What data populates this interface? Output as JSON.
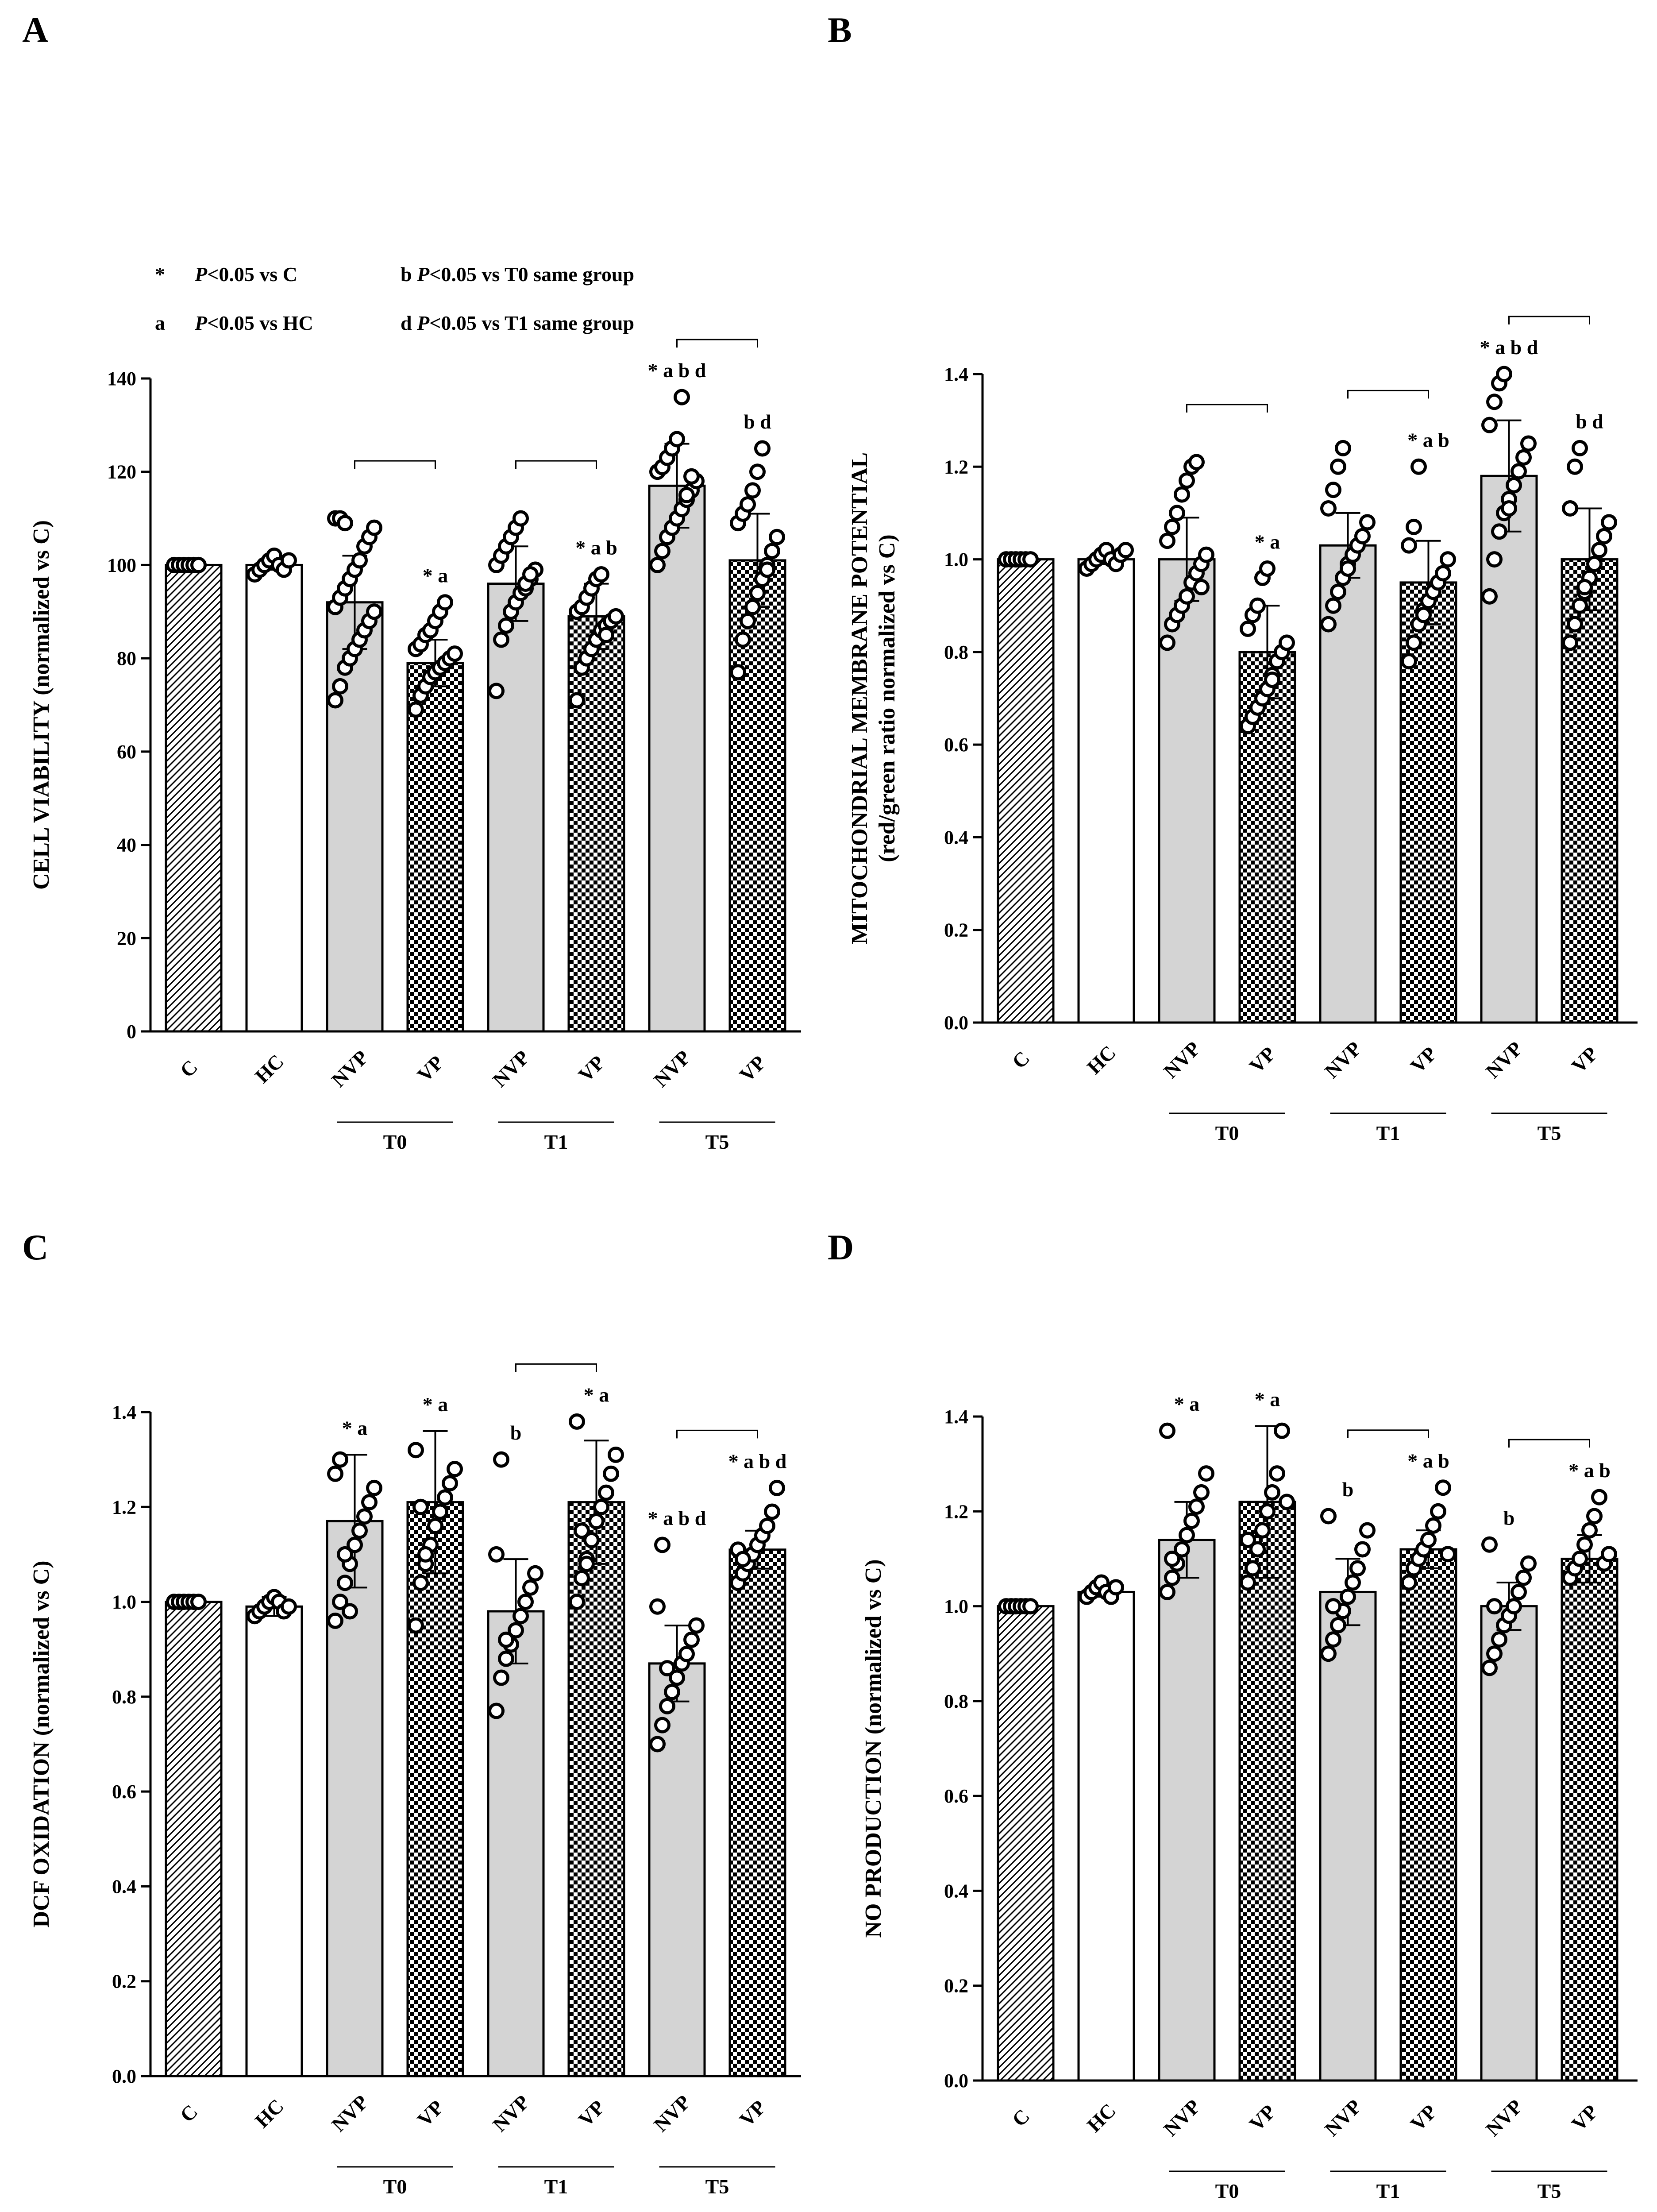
{
  "legend": {
    "lines": [
      {
        "symbol": "*",
        "italic": "P",
        "rest": "<0.05 vs C"
      },
      {
        "symbol": "a",
        "italic": "P",
        "rest": "<0.05 vs HC"
      },
      {
        "symbol": "b",
        "italic": "P",
        "rest": "<0.05 vs T0 same group"
      },
      {
        "symbol": "d",
        "italic": "P",
        "rest": "<0.05 vs T1 same group"
      }
    ]
  },
  "colors": {
    "bar_fill_gray": "#d4d4d4",
    "bar_fill_white": "#ffffff",
    "stroke": "#000000"
  },
  "chart_data": [
    {
      "panel": "A",
      "type": "bar",
      "ylabel_lines": [
        "CELL VIABILITY (normalized vs C)"
      ],
      "ylim": [
        0,
        140
      ],
      "yticks": [
        "0",
        "20",
        "40",
        "60",
        "80",
        "100",
        "120",
        "140"
      ],
      "categories": [
        "C",
        "HC",
        "NVP",
        "VP",
        "NVP",
        "VP",
        "NVP",
        "VP"
      ],
      "groups": [
        "T0",
        "T1",
        "T5"
      ],
      "patterns": [
        "hatch",
        "white",
        "gray",
        "check",
        "gray",
        "check",
        "gray",
        "check"
      ],
      "values": [
        100,
        100,
        92,
        79,
        96,
        89,
        117,
        101
      ],
      "sd": [
        0,
        1,
        10,
        5,
        8,
        7,
        9,
        10
      ],
      "points": [
        [
          100,
          100,
          100,
          100,
          100,
          100
        ],
        [
          98,
          99,
          100,
          101,
          102,
          100,
          99,
          101
        ],
        [
          71,
          74,
          78,
          80,
          82,
          84,
          86,
          88,
          90,
          91,
          93,
          95,
          97,
          99,
          101,
          104,
          106,
          108,
          110,
          110,
          109
        ],
        [
          69,
          72,
          74,
          76,
          77,
          78,
          79,
          80,
          81,
          82,
          83,
          85,
          86,
          88,
          90,
          92
        ],
        [
          73,
          84,
          87,
          90,
          92,
          94,
          95,
          97,
          99,
          100,
          102,
          104,
          106,
          108,
          110,
          96,
          98
        ],
        [
          71,
          78,
          80,
          82,
          84,
          86,
          87,
          88,
          89,
          90,
          91,
          93,
          95,
          97,
          98,
          85
        ],
        [
          100,
          103,
          106,
          108,
          110,
          112,
          114,
          116,
          118,
          120,
          121,
          123,
          125,
          127,
          136,
          115,
          119
        ],
        [
          77,
          84,
          88,
          91,
          94,
          97,
          100,
          103,
          106,
          109,
          111,
          113,
          116,
          120,
          125,
          99
        ]
      ],
      "annotations": [
        "",
        "",
        "",
        "* a",
        "",
        "* a b",
        "* a b d",
        "b d"
      ],
      "brackets": [
        [
          2,
          3
        ],
        [
          4,
          5
        ],
        [
          6,
          7
        ]
      ]
    },
    {
      "panel": "B",
      "type": "bar",
      "ylabel_lines": [
        "MITOCHONDRIAL MEMBRANE POTENTIAL",
        "(red/green ratio normalized vs C)"
      ],
      "ylim": [
        0,
        1.4
      ],
      "yticks": [
        "0.0",
        "0.2",
        "0.4",
        "0.6",
        "0.8",
        "1.0",
        "1.2",
        "1.4"
      ],
      "categories": [
        "C",
        "HC",
        "NVP",
        "VP",
        "NVP",
        "VP",
        "NVP",
        "VP"
      ],
      "groups": [
        "T0",
        "T1",
        "T5"
      ],
      "patterns": [
        "hatch",
        "white",
        "gray",
        "check",
        "gray",
        "check",
        "gray",
        "check"
      ],
      "values": [
        1.0,
        1.0,
        1.0,
        0.8,
        1.03,
        0.95,
        1.18,
        1.0
      ],
      "sd": [
        0,
        0.01,
        0.09,
        0.1,
        0.07,
        0.09,
        0.12,
        0.11
      ],
      "points": [
        [
          1.0,
          1.0,
          1.0,
          1.0,
          1.0,
          1.0
        ],
        [
          0.98,
          0.99,
          1.0,
          1.01,
          1.02,
          1.0,
          0.99,
          1.01,
          1.02
        ],
        [
          0.82,
          0.86,
          0.88,
          0.9,
          0.92,
          0.95,
          0.97,
          0.99,
          1.01,
          1.04,
          1.07,
          1.1,
          1.14,
          1.17,
          1.2,
          1.21,
          0.94
        ],
        [
          0.64,
          0.66,
          0.68,
          0.7,
          0.72,
          0.75,
          0.78,
          0.8,
          0.82,
          0.85,
          0.88,
          0.9,
          0.96,
          0.98,
          0.74
        ],
        [
          0.86,
          0.9,
          0.93,
          0.96,
          0.99,
          1.01,
          1.03,
          1.05,
          1.08,
          1.11,
          1.15,
          1.2,
          1.24,
          0.98
        ],
        [
          0.78,
          0.82,
          0.86,
          0.89,
          0.91,
          0.93,
          0.95,
          0.97,
          1.0,
          1.03,
          1.07,
          1.2,
          0.88
        ],
        [
          0.92,
          1.0,
          1.06,
          1.1,
          1.13,
          1.16,
          1.19,
          1.22,
          1.25,
          1.29,
          1.34,
          1.38,
          1.4,
          1.11
        ],
        [
          0.82,
          0.86,
          0.9,
          0.93,
          0.96,
          0.99,
          1.02,
          1.05,
          1.08,
          1.11,
          1.2,
          1.24,
          0.94
        ]
      ],
      "annotations": [
        "",
        "",
        "",
        "* a",
        "",
        "* a b",
        "* a b d",
        "b d"
      ],
      "brackets": [
        [
          2,
          3
        ],
        [
          4,
          5
        ],
        [
          6,
          7
        ]
      ]
    },
    {
      "panel": "C",
      "type": "bar",
      "ylabel_lines": [
        "DCF OXIDATION (normalized vs C)"
      ],
      "ylim": [
        0,
        1.4
      ],
      "yticks": [
        "0.0",
        "0.2",
        "0.4",
        "0.6",
        "0.8",
        "1.0",
        "1.2",
        "1.4"
      ],
      "categories": [
        "C",
        "HC",
        "NVP",
        "VP",
        "NVP",
        "VP",
        "NVP",
        "VP"
      ],
      "groups": [
        "T0",
        "T1",
        "T5"
      ],
      "patterns": [
        "hatch",
        "white",
        "gray",
        "check",
        "gray",
        "check",
        "gray",
        "check"
      ],
      "values": [
        1.0,
        0.99,
        1.17,
        1.21,
        0.98,
        1.21,
        0.87,
        1.11
      ],
      "sd": [
        0,
        0.02,
        0.14,
        0.15,
        0.11,
        0.13,
        0.08,
        0.04
      ],
      "points": [
        [
          1.0,
          1.0,
          1.0,
          1.0,
          1.0,
          1.0
        ],
        [
          0.97,
          0.98,
          0.99,
          1.0,
          1.01,
          1.0,
          0.98,
          0.99
        ],
        [
          0.96,
          1.0,
          1.04,
          1.08,
          1.12,
          1.15,
          1.18,
          1.21,
          1.24,
          1.27,
          1.3,
          1.1,
          0.98
        ],
        [
          0.95,
          1.04,
          1.08,
          1.12,
          1.16,
          1.19,
          1.22,
          1.25,
          1.28,
          1.32,
          1.2,
          1.1
        ],
        [
          0.77,
          0.84,
          0.88,
          0.91,
          0.94,
          0.97,
          1.0,
          1.03,
          1.06,
          1.1,
          1.3,
          0.92
        ],
        [
          1.0,
          1.05,
          1.09,
          1.13,
          1.17,
          1.2,
          1.23,
          1.27,
          1.31,
          1.38,
          1.15,
          1.08
        ],
        [
          0.7,
          0.74,
          0.78,
          0.81,
          0.84,
          0.87,
          0.89,
          0.92,
          0.95,
          0.99,
          1.12,
          0.86
        ],
        [
          1.04,
          1.06,
          1.08,
          1.1,
          1.12,
          1.14,
          1.16,
          1.19,
          1.24,
          1.11,
          1.09
        ]
      ],
      "annotations": [
        "",
        "",
        "* a",
        "* a",
        "b",
        "* a",
        "* a b d",
        "* a b d"
      ],
      "brackets": [
        [
          4,
          5
        ],
        [
          6,
          7
        ]
      ]
    },
    {
      "panel": "D",
      "type": "bar",
      "ylabel_lines": [
        "NO PRODUCTION (normalized vs C)"
      ],
      "ylim": [
        0,
        1.4
      ],
      "yticks": [
        "0.0",
        "0.2",
        "0.4",
        "0.6",
        "0.8",
        "1.0",
        "1.2",
        "1.4"
      ],
      "categories": [
        "C",
        "HC",
        "NVP",
        "VP",
        "NVP",
        "VP",
        "NVP",
        "VP"
      ],
      "groups": [
        "T0",
        "T1",
        "T5"
      ],
      "patterns": [
        "hatch",
        "white",
        "gray",
        "check",
        "gray",
        "check",
        "gray",
        "check"
      ],
      "values": [
        1.0,
        1.03,
        1.14,
        1.22,
        1.03,
        1.12,
        1.0,
        1.1
      ],
      "sd": [
        0,
        0.01,
        0.08,
        0.16,
        0.07,
        0.04,
        0.05,
        0.05
      ],
      "points": [
        [
          1.0,
          1.0,
          1.0,
          1.0,
          1.0,
          1.0
        ],
        [
          1.02,
          1.03,
          1.04,
          1.05,
          1.03,
          1.02,
          1.04
        ],
        [
          1.03,
          1.06,
          1.09,
          1.12,
          1.15,
          1.18,
          1.21,
          1.24,
          1.28,
          1.37,
          1.1
        ],
        [
          1.05,
          1.08,
          1.12,
          1.16,
          1.2,
          1.24,
          1.28,
          1.37,
          1.22,
          1.14
        ],
        [
          0.9,
          0.93,
          0.96,
          0.99,
          1.02,
          1.05,
          1.08,
          1.12,
          1.16,
          1.19,
          1.0
        ],
        [
          1.05,
          1.08,
          1.1,
          1.12,
          1.14,
          1.17,
          1.2,
          1.25,
          1.11
        ],
        [
          0.87,
          0.9,
          0.93,
          0.96,
          0.98,
          1.0,
          1.03,
          1.06,
          1.09,
          1.13,
          1.0
        ],
        [
          1.06,
          1.08,
          1.1,
          1.13,
          1.16,
          1.19,
          1.23,
          1.09,
          1.11
        ]
      ],
      "annotations": [
        "",
        "",
        "* a",
        "* a",
        "b",
        "* a b",
        "b",
        "* a b"
      ],
      "brackets": [
        [
          4,
          5
        ],
        [
          6,
          7
        ]
      ]
    }
  ]
}
